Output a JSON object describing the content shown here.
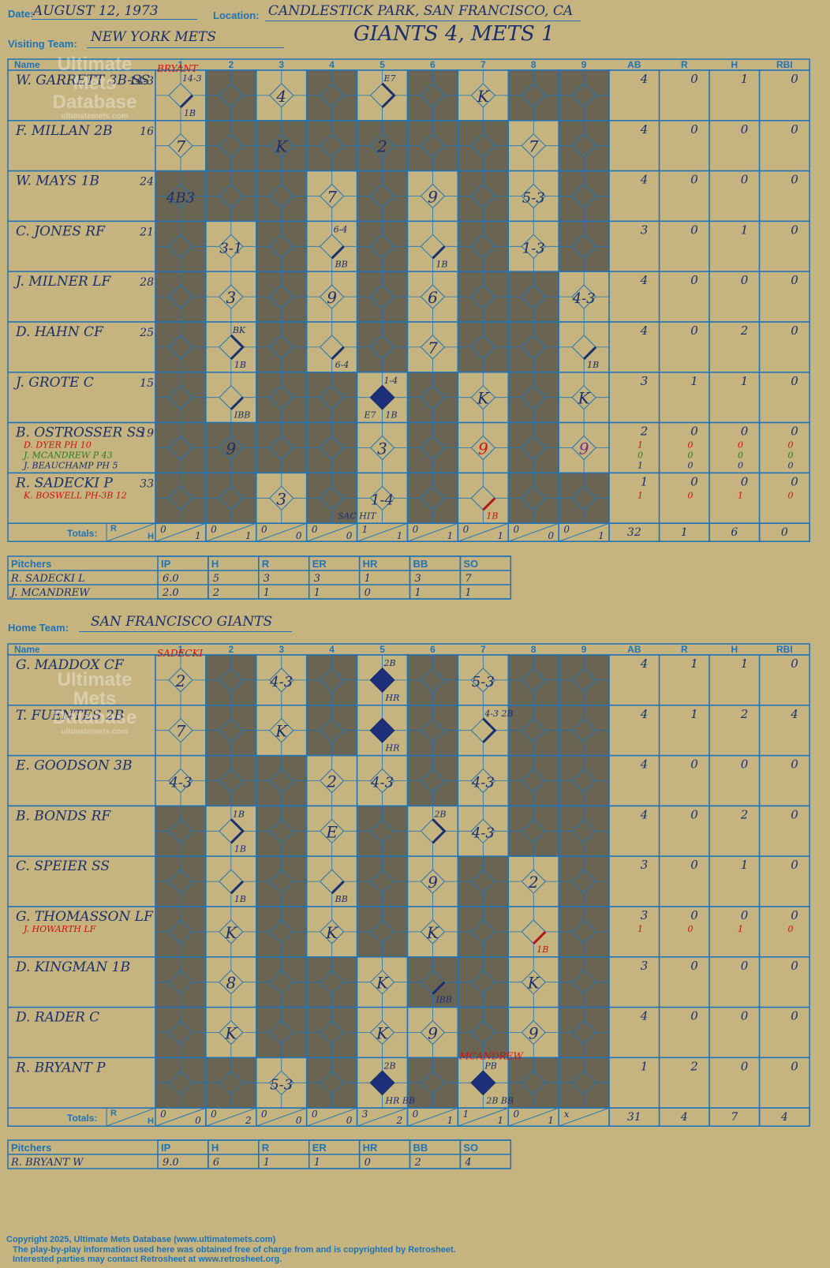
{
  "header": {
    "date_label": "Date:",
    "date": "AUGUST 12, 1973",
    "location_label": "Location:",
    "location": "CANDLESTICK PARK, SAN FRANCISCO, CA",
    "visiting_label": "Visiting Team:",
    "visiting_team": "NEW YORK METS",
    "final": "GIANTS 4, METS 1",
    "home_label": "Home Team:",
    "home_team": "SAN FRANCISCO GIANTS"
  },
  "watermark": {
    "line1": "Ultimate",
    "line2": "Mets",
    "line3": "Database",
    "line4": "ultimatemets.com"
  },
  "columns": {
    "name": "Name",
    "innings": [
      "1",
      "2",
      "3",
      "4",
      "5",
      "6",
      "7",
      "8",
      "9"
    ],
    "stats": [
      "AB",
      "R",
      "H",
      "RBI"
    ]
  },
  "totals_label": "Totals:",
  "totals_r": "R",
  "totals_h": "H",
  "pitch_header": {
    "pitchers": "Pitchers",
    "cols": [
      "IP",
      "H",
      "R",
      "ER",
      "HR",
      "BB",
      "SO"
    ]
  },
  "visitors": {
    "dark": [
      [
        0,
        1,
        0,
        1,
        0,
        1,
        0,
        1,
        1
      ],
      [
        0,
        1,
        1,
        1,
        1,
        1,
        1,
        0,
        1
      ],
      [
        1,
        1,
        1,
        0,
        1,
        0,
        1,
        0,
        1
      ],
      [
        1,
        0,
        1,
        0,
        1,
        0,
        1,
        0,
        1
      ],
      [
        1,
        0,
        1,
        0,
        1,
        0,
        1,
        1,
        0
      ],
      [
        1,
        0,
        1,
        0,
        1,
        0,
        1,
        1,
        0
      ],
      [
        1,
        0,
        1,
        1,
        0,
        1,
        0,
        1,
        0
      ],
      [
        1,
        1,
        1,
        1,
        0,
        1,
        0,
        1,
        0
      ],
      [
        1,
        1,
        0,
        1,
        0,
        1,
        0,
        1,
        1
      ]
    ],
    "players": [
      {
        "name": "W. GARRETT 3B-SS",
        "num": "14-3",
        "subs": [],
        "stats": [
          "4",
          "0",
          "1",
          "0"
        ]
      },
      {
        "name": "F. MILLAN 2B",
        "num": "16",
        "subs": [],
        "stats": [
          "4",
          "0",
          "0",
          "0"
        ]
      },
      {
        "name": "W. MAYS 1B",
        "num": "24",
        "subs": [],
        "stats": [
          "4",
          "0",
          "0",
          "0"
        ]
      },
      {
        "name": "C. JONES RF",
        "num": "21",
        "subs": [],
        "stats": [
          "3",
          "0",
          "1",
          "0"
        ]
      },
      {
        "name": "J. MILNER LF",
        "num": "28",
        "subs": [],
        "stats": [
          "4",
          "0",
          "0",
          "0"
        ]
      },
      {
        "name": "D. HAHN CF",
        "num": "25",
        "subs": [],
        "stats": [
          "4",
          "0",
          "2",
          "0"
        ]
      },
      {
        "name": "J. GROTE C",
        "num": "15",
        "subs": [],
        "stats": [
          "3",
          "1",
          "1",
          "0"
        ]
      },
      {
        "name": "B. OSTROSSER SS",
        "num": "19",
        "subs": [
          {
            "name": "D. DYER PH  10",
            "color": "red",
            "stats": [
              "1",
              "0",
              "0",
              "0"
            ]
          },
          {
            "name": "J. MCANDREW P  43",
            "color": "green",
            "stats": [
              "0",
              "0",
              "0",
              "0"
            ]
          },
          {
            "name": "J. BEAUCHAMP PH  5",
            "color": "blue",
            "stats": [
              "1",
              "0",
              "0",
              "0"
            ]
          }
        ],
        "stats": [
          "2",
          "0",
          "0",
          "0"
        ]
      },
      {
        "name": "R. SADECKI P",
        "num": "33",
        "subs": [
          {
            "name": "K. BOSWELL PH-3B  12",
            "color": "red",
            "stats": [
              "1",
              "0",
              "1",
              "0"
            ]
          }
        ],
        "stats": [
          "1",
          "0",
          "0",
          "0"
        ]
      }
    ],
    "plays": [
      {
        "r": 0,
        "c": 0,
        "t": "",
        "hit": "1B",
        "note": "14-3",
        "dia": true,
        "red_top": "BRYANT"
      },
      {
        "r": 0,
        "c": 2,
        "t": "4"
      },
      {
        "r": 0,
        "c": 4,
        "t": "",
        "hit": "",
        "note": "E7",
        "dia": true,
        "two": true
      },
      {
        "r": 0,
        "c": 6,
        "t": "K"
      },
      {
        "r": 1,
        "c": 0,
        "t": "7"
      },
      {
        "r": 1,
        "c": 2,
        "t": "K"
      },
      {
        "r": 1,
        "c": 4,
        "t": "2"
      },
      {
        "r": 1,
        "c": 7,
        "t": "7"
      },
      {
        "r": 2,
        "c": 0,
        "t": "4B3"
      },
      {
        "r": 2,
        "c": 3,
        "t": "7"
      },
      {
        "r": 2,
        "c": 5,
        "t": "9"
      },
      {
        "r": 2,
        "c": 7,
        "t": "5-3"
      },
      {
        "r": 3,
        "c": 1,
        "t": "3-1"
      },
      {
        "r": 3,
        "c": 3,
        "t": "",
        "hit": "BB",
        "note": "6-4",
        "dia": true
      },
      {
        "r": 3,
        "c": 5,
        "t": "",
        "hit": "1B",
        "dia": true
      },
      {
        "r": 3,
        "c": 7,
        "t": "1-3"
      },
      {
        "r": 4,
        "c": 1,
        "t": "3"
      },
      {
        "r": 4,
        "c": 3,
        "t": "9"
      },
      {
        "r": 4,
        "c": 5,
        "t": "6"
      },
      {
        "r": 4,
        "c": 8,
        "t": "4-3"
      },
      {
        "r": 5,
        "c": 1,
        "t": "",
        "hit": "1B",
        "note": "BK",
        "dia": true,
        "two": true
      },
      {
        "r": 5,
        "c": 3,
        "t": "",
        "hit": "6-4",
        "dia": true
      },
      {
        "r": 5,
        "c": 5,
        "t": "7"
      },
      {
        "r": 5,
        "c": 8,
        "t": "",
        "hit": "1B",
        "dia": true
      },
      {
        "r": 6,
        "c": 1,
        "t": "",
        "hit": "IBB",
        "dia": true
      },
      {
        "r": 6,
        "c": 4,
        "t": "",
        "hit": "1B",
        "note": "1-4",
        "run": true,
        "extra": "E7"
      },
      {
        "r": 6,
        "c": 6,
        "t": "K"
      },
      {
        "r": 6,
        "c": 8,
        "t": "K"
      },
      {
        "r": 7,
        "c": 1,
        "t": "9"
      },
      {
        "r": 7,
        "c": 4,
        "t": "3"
      },
      {
        "r": 7,
        "c": 6,
        "t": "9",
        "color": "red"
      },
      {
        "r": 7,
        "c": 8,
        "t": "9",
        "color": "purple"
      },
      {
        "r": 8,
        "c": 2,
        "t": "3"
      },
      {
        "r": 8,
        "c": 4,
        "t": "1-4",
        "extra": "SAC HIT"
      },
      {
        "r": 8,
        "c": 6,
        "t": "",
        "hit": "1B",
        "dia": true,
        "redhit": true
      }
    ],
    "totals": [
      [
        "0",
        "1"
      ],
      [
        "0",
        "1"
      ],
      [
        "0",
        "0"
      ],
      [
        "0",
        "0"
      ],
      [
        "1",
        "1"
      ],
      [
        "0",
        "1"
      ],
      [
        "0",
        "1"
      ],
      [
        "0",
        "0"
      ],
      [
        "0",
        "1"
      ]
    ],
    "totals_stats": [
      "32",
      "1",
      "6",
      "0"
    ],
    "pitchers": [
      {
        "name": "R. SADECKI  L",
        "stats": [
          "6.0",
          "5",
          "3",
          "3",
          "1",
          "3",
          "7"
        ]
      },
      {
        "name": "J. MCANDREW",
        "stats": [
          "2.0",
          "2",
          "1",
          "1",
          "0",
          "1",
          "1"
        ]
      }
    ]
  },
  "home": {
    "dark": [
      [
        0,
        1,
        0,
        1,
        0,
        1,
        0,
        1,
        1
      ],
      [
        0,
        1,
        0,
        1,
        0,
        1,
        0,
        1,
        1
      ],
      [
        0,
        1,
        1,
        0,
        0,
        1,
        0,
        1,
        1
      ],
      [
        1,
        0,
        1,
        0,
        1,
        0,
        0,
        1,
        1
      ],
      [
        1,
        0,
        1,
        0,
        1,
        0,
        1,
        0,
        1
      ],
      [
        1,
        0,
        1,
        0,
        1,
        0,
        1,
        0,
        1
      ],
      [
        1,
        0,
        1,
        1,
        0,
        1,
        1,
        0,
        1
      ],
      [
        1,
        0,
        1,
        1,
        0,
        0,
        1,
        0,
        1
      ],
      [
        1,
        1,
        0,
        1,
        0,
        1,
        0,
        1,
        1
      ]
    ],
    "players": [
      {
        "name": "G. MADDOX CF",
        "num": "",
        "subs": [],
        "stats": [
          "4",
          "1",
          "1",
          "0"
        ]
      },
      {
        "name": "T. FUENTES 2B",
        "num": "",
        "subs": [],
        "stats": [
          "4",
          "1",
          "2",
          "4"
        ]
      },
      {
        "name": "E. GOODSON 3B",
        "num": "",
        "subs": [],
        "stats": [
          "4",
          "0",
          "0",
          "0"
        ]
      },
      {
        "name": "B. BONDS RF",
        "num": "",
        "subs": [],
        "stats": [
          "4",
          "0",
          "2",
          "0"
        ]
      },
      {
        "name": "C. SPEIER SS",
        "num": "",
        "subs": [],
        "stats": [
          "3",
          "0",
          "1",
          "0"
        ]
      },
      {
        "name": "G. THOMASSON LF",
        "num": "",
        "subs": [
          {
            "name": "J. HOWARTH LF",
            "color": "red",
            "stats": [
              "1",
              "0",
              "1",
              "0"
            ]
          }
        ],
        "stats": [
          "3",
          "0",
          "0",
          "0"
        ]
      },
      {
        "name": "D. KINGMAN 1B",
        "num": "",
        "subs": [],
        "stats": [
          "3",
          "0",
          "0",
          "0"
        ]
      },
      {
        "name": "D. RADER C",
        "num": "",
        "subs": [],
        "stats": [
          "4",
          "0",
          "0",
          "0"
        ]
      },
      {
        "name": "R. BRYANT P",
        "num": "",
        "subs": [],
        "stats": [
          "1",
          "2",
          "0",
          "0"
        ]
      }
    ],
    "plays": [
      {
        "r": 0,
        "c": 0,
        "t": "2",
        "red_top": "SADECKI"
      },
      {
        "r": 0,
        "c": 2,
        "t": "4-3"
      },
      {
        "r": 0,
        "c": 4,
        "t": "",
        "hit": "HR",
        "note": "2B",
        "run": true
      },
      {
        "r": 0,
        "c": 6,
        "t": "5-3"
      },
      {
        "r": 1,
        "c": 0,
        "t": "7"
      },
      {
        "r": 1,
        "c": 2,
        "t": "K"
      },
      {
        "r": 1,
        "c": 4,
        "t": "",
        "hit": "HR",
        "run": true
      },
      {
        "r": 1,
        "c": 6,
        "t": "",
        "hit": "",
        "note": "4-3 2B",
        "dia": true,
        "two": true
      },
      {
        "r": 2,
        "c": 0,
        "t": "4-3"
      },
      {
        "r": 2,
        "c": 3,
        "t": "2"
      },
      {
        "r": 2,
        "c": 4,
        "t": "4-3"
      },
      {
        "r": 2,
        "c": 6,
        "t": "4-3"
      },
      {
        "r": 3,
        "c": 1,
        "t": "",
        "hit": "1B",
        "note": "1B",
        "dia": true,
        "two": true
      },
      {
        "r": 3,
        "c": 3,
        "t": "E"
      },
      {
        "r": 3,
        "c": 5,
        "t": "",
        "hit": "",
        "note": "2B",
        "dia": true,
        "two": true
      },
      {
        "r": 3,
        "c": 6,
        "t": "4-3"
      },
      {
        "r": 4,
        "c": 1,
        "t": "",
        "hit": "1B",
        "dia": true
      },
      {
        "r": 4,
        "c": 3,
        "t": "",
        "hit": "BB",
        "dia": true
      },
      {
        "r": 4,
        "c": 5,
        "t": "9"
      },
      {
        "r": 4,
        "c": 7,
        "t": "2"
      },
      {
        "r": 5,
        "c": 1,
        "t": "K"
      },
      {
        "r": 5,
        "c": 3,
        "t": "K"
      },
      {
        "r": 5,
        "c": 5,
        "t": "K"
      },
      {
        "r": 5,
        "c": 7,
        "t": "",
        "hit": "1B",
        "dia": true,
        "redhit": true
      },
      {
        "r": 6,
        "c": 1,
        "t": "8"
      },
      {
        "r": 6,
        "c": 4,
        "t": "K"
      },
      {
        "r": 6,
        "c": 5,
        "t": "",
        "hit": "IBB",
        "dia": true
      },
      {
        "r": 6,
        "c": 7,
        "t": "K"
      },
      {
        "r": 7,
        "c": 1,
        "t": "K"
      },
      {
        "r": 7,
        "c": 4,
        "t": "K"
      },
      {
        "r": 7,
        "c": 5,
        "t": "9"
      },
      {
        "r": 7,
        "c": 7,
        "t": "9"
      },
      {
        "r": 8,
        "c": 2,
        "t": "5-3"
      },
      {
        "r": 8,
        "c": 4,
        "t": "",
        "hit": "HR BB",
        "note": "2B",
        "run": true
      },
      {
        "r": 8,
        "c": 6,
        "t": "",
        "hit": "2B BB",
        "note": "PB",
        "run": true,
        "red_top": "MCANDREW"
      }
    ],
    "totals": [
      [
        "0",
        "0"
      ],
      [
        "0",
        "2"
      ],
      [
        "0",
        "0"
      ],
      [
        "0",
        "0"
      ],
      [
        "3",
        "2"
      ],
      [
        "0",
        "1"
      ],
      [
        "1",
        "1"
      ],
      [
        "0",
        "1"
      ],
      [
        "x",
        ""
      ]
    ],
    "totals_stats": [
      "31",
      "4",
      "7",
      "4"
    ],
    "pitchers": [
      {
        "name": "R. BRYANT  W",
        "stats": [
          "9.0",
          "6",
          "1",
          "1",
          "0",
          "2",
          "4"
        ]
      }
    ]
  },
  "footer": {
    "line1": "Copyright 2025, Ultimate Mets Database (www.ultimatemets.com)",
    "line2": "The play-by-play information used here was obtained free of charge from and is copyrighted by Retrosheet.",
    "line3": "Interested parties may contact Retrosheet at www.retrosheet.org."
  }
}
